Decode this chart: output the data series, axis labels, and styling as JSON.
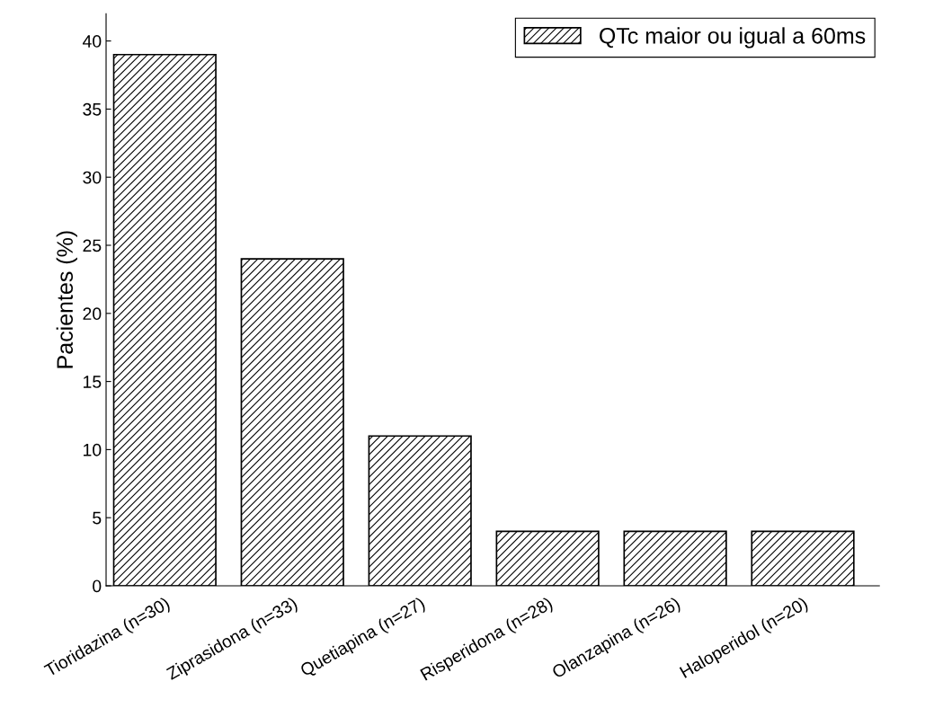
{
  "chart_data": {
    "type": "bar",
    "ylabel": "Pacientes (%)",
    "categories": [
      "Tioridazina (n=30)",
      "Ziprasidona (n=33)",
      "Quetiapina (n=27)",
      "Risperidona (n=28)",
      "Olanzapina (n=26)",
      "Haloperidol (n=20)"
    ],
    "series": [
      {
        "name": "QTc maior ou igual a 60ms",
        "color": "#000000",
        "values": [
          39,
          24,
          11,
          4,
          4,
          4
        ]
      }
    ],
    "ylim": [
      0,
      42
    ],
    "yticks": [
      0,
      5,
      10,
      15,
      20,
      25,
      30,
      35,
      40
    ],
    "grid": false,
    "legend": "top right"
  }
}
